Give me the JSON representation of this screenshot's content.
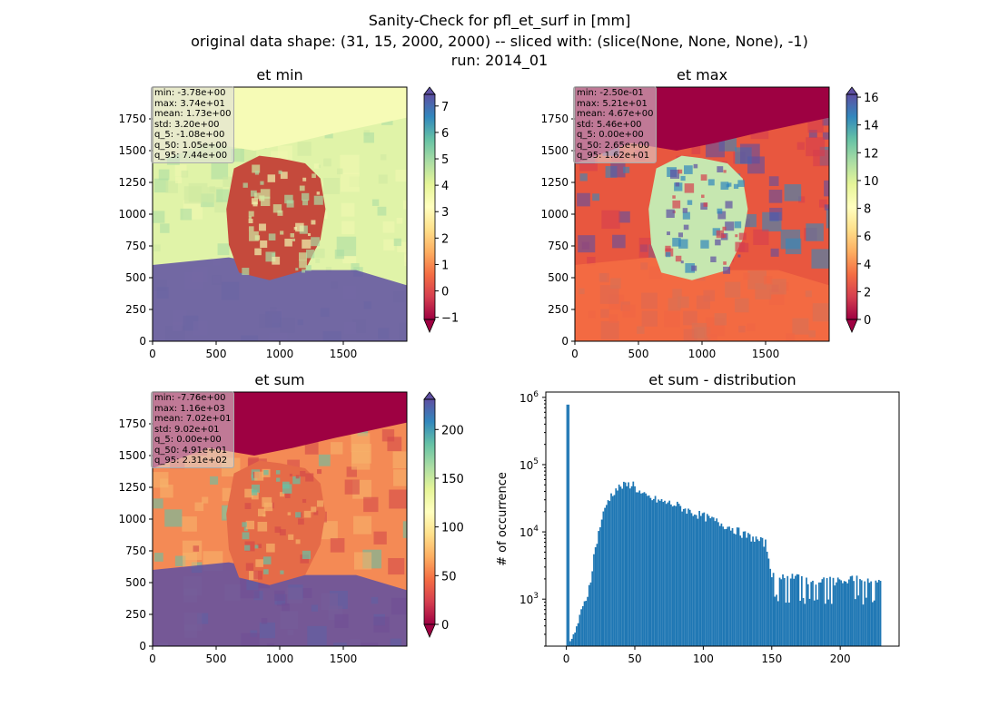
{
  "suptitle": {
    "line1": "Sanity-Check for pfl_et_surf in [mm]",
    "line2": "original data shape: (31, 15, 2000, 2000) -- sliced with: (slice(None, None, None), -1)",
    "line3": "run: 2014_01"
  },
  "chart_data": [
    {
      "type": "heatmap",
      "title": "et min",
      "cmap": "Spectral",
      "xticks": [
        0,
        500,
        1000,
        1500
      ],
      "yticks": [
        0,
        250,
        500,
        750,
        1000,
        1250,
        1500,
        1750
      ],
      "xlim": [
        0,
        2000
      ],
      "ylim": [
        0,
        2000
      ],
      "colorbar": {
        "ticks": [
          -1,
          0,
          1,
          2,
          3,
          4,
          5,
          6,
          7
        ],
        "range": [
          -1.08,
          7.44
        ]
      },
      "stats": [
        "min: -3.78e+00",
        "max: 3.74e+01",
        "mean: 1.73e+00",
        "std: 3.20e+00",
        "q_5: -1.08e+00",
        "q_50: 1.05e+00",
        "q_95: 7.44e+00"
      ]
    },
    {
      "type": "heatmap",
      "title": "et max",
      "cmap": "Spectral",
      "xticks": [
        0,
        500,
        1000,
        1500
      ],
      "yticks": [
        0,
        250,
        500,
        750,
        1000,
        1250,
        1500,
        1750
      ],
      "xlim": [
        0,
        2000
      ],
      "ylim": [
        0,
        2000
      ],
      "colorbar": {
        "ticks": [
          0,
          2,
          4,
          6,
          8,
          10,
          12,
          14,
          16
        ],
        "range": [
          0,
          16.2
        ]
      },
      "stats": [
        "min: -2.50e-01",
        "max: 5.21e+01",
        "mean: 4.67e+00",
        "std: 5.46e+00",
        "q_5: 0.00e+00",
        "q_50: 2.65e+00",
        "q_95: 1.62e+01"
      ]
    },
    {
      "type": "heatmap",
      "title": "et sum",
      "cmap": "Spectral",
      "xticks": [
        0,
        500,
        1000,
        1500
      ],
      "yticks": [
        0,
        250,
        500,
        750,
        1000,
        1250,
        1500,
        1750
      ],
      "xlim": [
        0,
        2000
      ],
      "ylim": [
        0,
        2000
      ],
      "colorbar": {
        "ticks": [
          0,
          50,
          100,
          150,
          200
        ],
        "range": [
          0,
          231
        ]
      },
      "stats": [
        "min: -7.76e+00",
        "max: 1.16e+03",
        "mean: 7.02e+01",
        "std: 9.02e+01",
        "q_5: 0.00e+00",
        "q_50: 4.91e+01",
        "q_95: 2.31e+02"
      ]
    },
    {
      "type": "bar",
      "title": "et sum - distribution",
      "ylabel": "# of occurrence",
      "xlabel": "",
      "yscale": "log",
      "xlim": [
        -15,
        243
      ],
      "ylim": [
        200,
        1200000
      ],
      "xticks": [
        0,
        50,
        100,
        150,
        200
      ],
      "yticks": [
        {
          "value": 1000,
          "base": "10",
          "exp": "3"
        },
        {
          "value": 10000,
          "base": "10",
          "exp": "4"
        },
        {
          "value": 100000,
          "base": "10",
          "exp": "5"
        },
        {
          "value": 1000000,
          "base": "10",
          "exp": "6"
        }
      ],
      "color": "#1f77b4",
      "bins": {
        "x": [
          0,
          10,
          15,
          18,
          20,
          25,
          30,
          35,
          40,
          45,
          48,
          50,
          55,
          60,
          70,
          80,
          90,
          100,
          110,
          120,
          130,
          140,
          145,
          150,
          160,
          170,
          180,
          190,
          200,
          210,
          220,
          230
        ],
        "y": [
          780000,
          600,
          1200,
          2500,
          5000,
          15000,
          30000,
          42000,
          48000,
          50000,
          53000,
          45000,
          35000,
          32000,
          28000,
          25000,
          20000,
          17000,
          14000,
          11500,
          9000,
          7500,
          6800,
          2200,
          2000,
          2200,
          1700,
          1900,
          1800,
          2000,
          1900,
          1800
        ]
      }
    }
  ]
}
